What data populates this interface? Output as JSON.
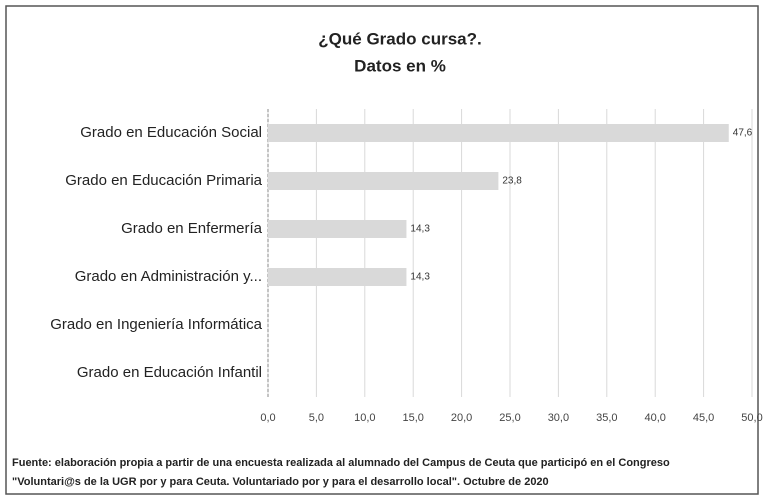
{
  "chart_data": {
    "type": "bar",
    "orientation": "horizontal",
    "title": "¿Qué Grado cursa?.",
    "subtitle": "Datos en %",
    "categories": [
      "Grado en Educación Social",
      "Grado en Educación Primaria",
      "Grado en Enfermería",
      "Grado en Administración y...",
      "Grado en Ingeniería Informática",
      "Grado en Educación Infantil"
    ],
    "values": [
      47.6,
      23.8,
      14.3,
      14.3,
      0,
      0
    ],
    "value_labels": [
      "47,6",
      "23,8",
      "14,3",
      "14,3",
      null,
      null
    ],
    "color": "#d9d9d9",
    "xlim": [
      0,
      50
    ],
    "xticks": [
      {
        "value": 0,
        "label": "0,0"
      },
      {
        "value": 5,
        "label": "5,0"
      },
      {
        "value": 10,
        "label": "10,0"
      },
      {
        "value": 15,
        "label": "15,0"
      },
      {
        "value": 20,
        "label": "20,0"
      },
      {
        "value": 25,
        "label": "25,0"
      },
      {
        "value": 30,
        "label": "30,0"
      },
      {
        "value": 35,
        "label": "35,0"
      },
      {
        "value": 40,
        "label": "40,0"
      },
      {
        "value": 45,
        "label": "45,0"
      },
      {
        "value": 50,
        "label": "50,0"
      }
    ],
    "grid": true,
    "footnote": [
      "Fuente: elaboración propia a partir de una encuesta realizada al alumnado del Campus de Ceuta  que participó en el Congreso",
      "\"Voluntari@s de la UGR por y para Ceuta. Voluntariado por y para el desarrollo local\". Octubre de 2020"
    ]
  }
}
